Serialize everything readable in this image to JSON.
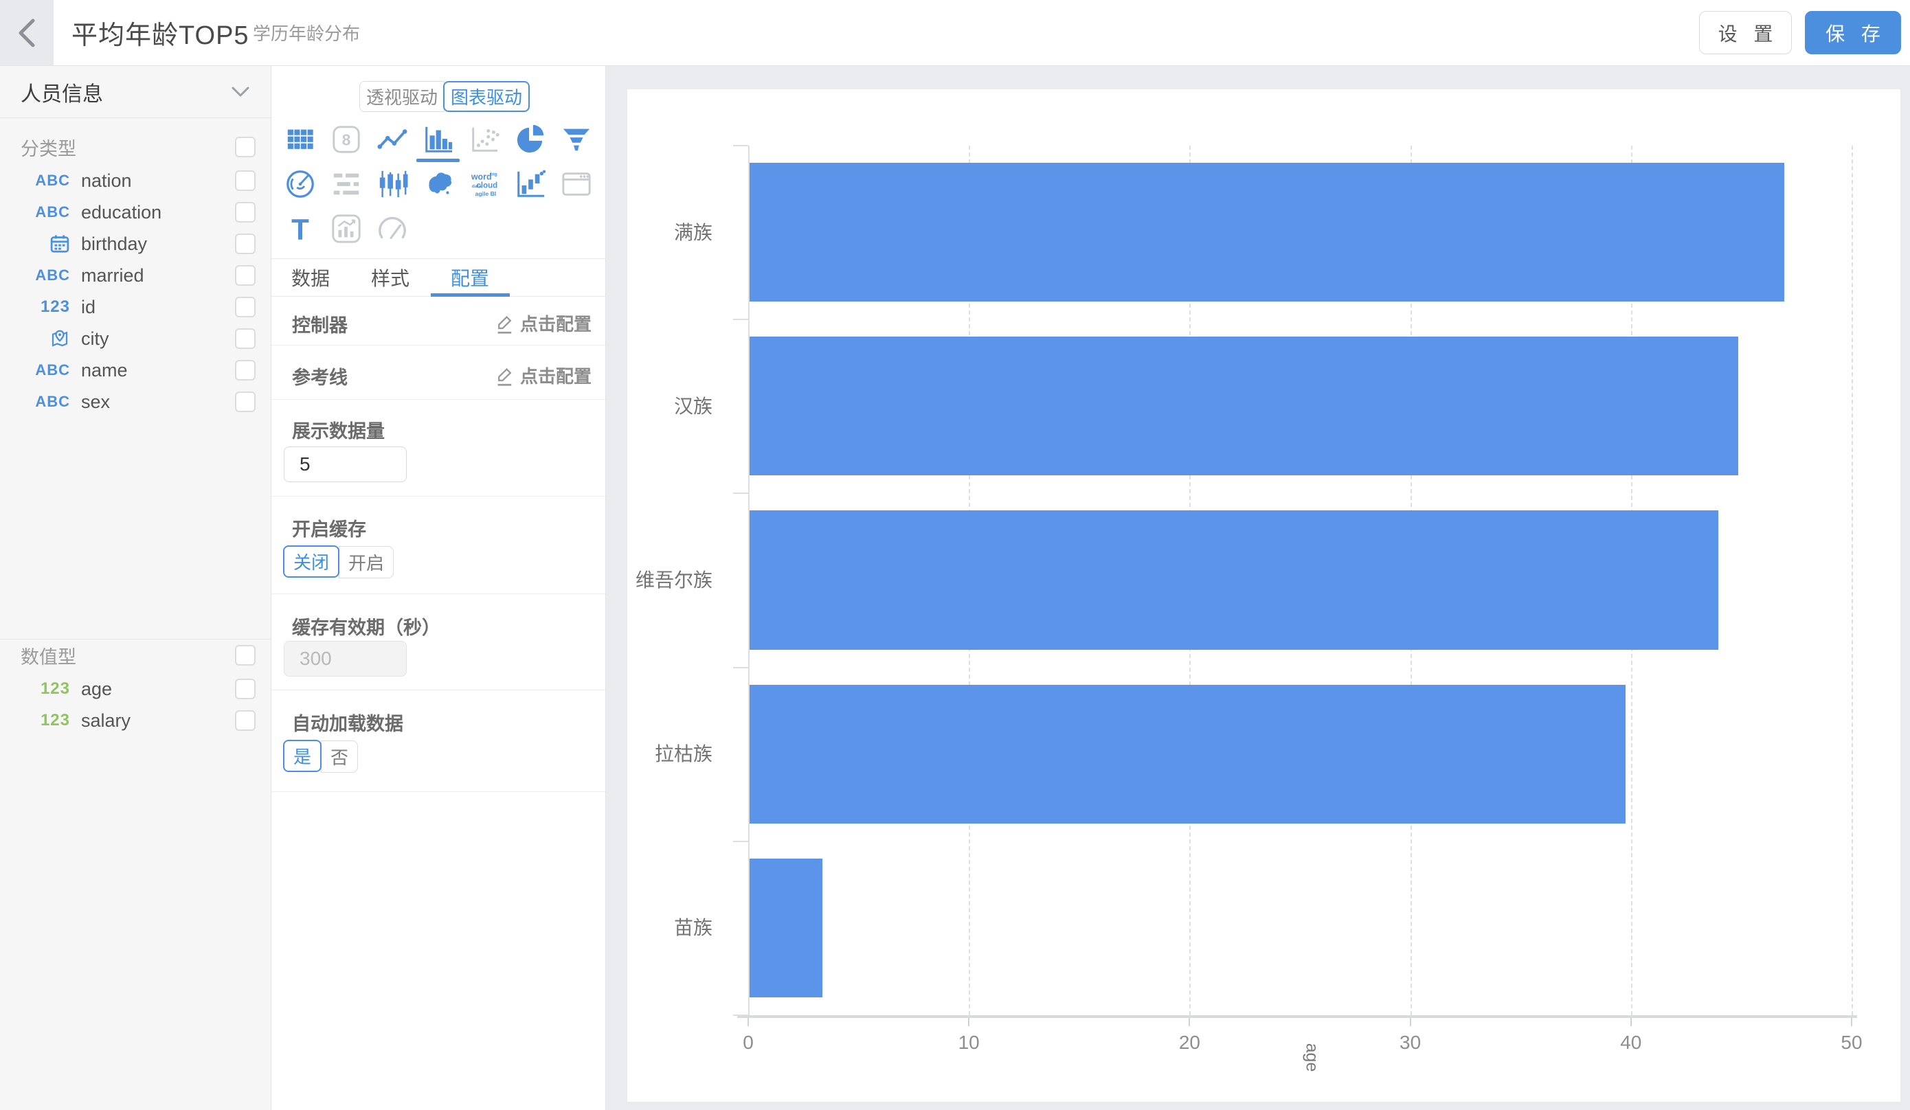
{
  "header": {
    "title": "平均年龄TOP5",
    "subtitle": "学历年龄分布",
    "settings_label": "设 置",
    "save_label": "保 存"
  },
  "sidebar": {
    "dataset_name": "人员信息",
    "categorical_label": "分类型",
    "numeric_label": "数值型",
    "categorical_fields": [
      {
        "type": "text",
        "name": "nation"
      },
      {
        "type": "text",
        "name": "education"
      },
      {
        "type": "date",
        "name": "birthday"
      },
      {
        "type": "text",
        "name": "married"
      },
      {
        "type": "number",
        "name": "id"
      },
      {
        "type": "location",
        "name": "city"
      },
      {
        "type": "text",
        "name": "name"
      },
      {
        "type": "text",
        "name": "sex"
      }
    ],
    "numeric_fields": [
      {
        "type": "number",
        "name": "age"
      },
      {
        "type": "number",
        "name": "salary"
      }
    ]
  },
  "panel": {
    "mode_tabs": [
      "透视驱动",
      "图表驱动"
    ],
    "active_mode": "图表驱动",
    "chart_types": [
      {
        "name": "table-chart",
        "enabled": true
      },
      {
        "name": "number-card",
        "enabled": false
      },
      {
        "name": "line-chart",
        "enabled": true
      },
      {
        "name": "bar-chart",
        "enabled": true,
        "selected": true
      },
      {
        "name": "scatter-chart",
        "enabled": false
      },
      {
        "name": "pie-chart",
        "enabled": true
      },
      {
        "name": "funnel-chart",
        "enabled": true
      },
      {
        "name": "radar-chart",
        "enabled": true
      },
      {
        "name": "gantt-chart",
        "enabled": false
      },
      {
        "name": "candlestick-chart",
        "enabled": true
      },
      {
        "name": "china-map",
        "enabled": true
      },
      {
        "name": "word-cloud",
        "enabled": true
      },
      {
        "name": "waterfall-chart",
        "enabled": true
      },
      {
        "name": "web-frame",
        "enabled": false
      },
      {
        "name": "text-widget",
        "enabled": true
      },
      {
        "name": "combo-chart",
        "enabled": false
      },
      {
        "name": "gauge-chart",
        "enabled": false
      }
    ],
    "tabs": [
      "数据",
      "样式",
      "配置"
    ],
    "active_tab": "配置",
    "controller": {
      "label": "控制器",
      "action": "点击配置"
    },
    "reference_line": {
      "label": "参考线",
      "action": "点击配置"
    },
    "display_count": {
      "label": "展示数据量",
      "value": "5"
    },
    "cache": {
      "label": "开启缓存",
      "options": [
        "关闭",
        "开启"
      ],
      "selected": "关闭"
    },
    "cache_ttl": {
      "label": "缓存有效期（秒）",
      "value": "300",
      "disabled": true
    },
    "auto_load": {
      "label": "自动加载数据",
      "options": [
        "是",
        "否"
      ],
      "selected": "是"
    }
  },
  "chart_data": {
    "type": "bar",
    "orientation": "horizontal",
    "title": "",
    "categories": [
      "满族",
      "汉族",
      "维吾尔族",
      "拉枯族",
      "苗族"
    ],
    "values": [
      46.9,
      44.8,
      43.9,
      39.7,
      3.3
    ],
    "xlabel": "age",
    "ylabel": "",
    "xlim": [
      0,
      50
    ],
    "xticks": [
      0,
      10,
      20,
      30,
      40,
      50
    ],
    "grid": "vertical-dashed",
    "legend": "none",
    "bar_color": "#5B94E8"
  },
  "colors": {
    "accent": "#4B8FDE",
    "bar": "#5B94E8",
    "numeric_green": "#8FC460",
    "text_blue": "#4D90DD"
  }
}
